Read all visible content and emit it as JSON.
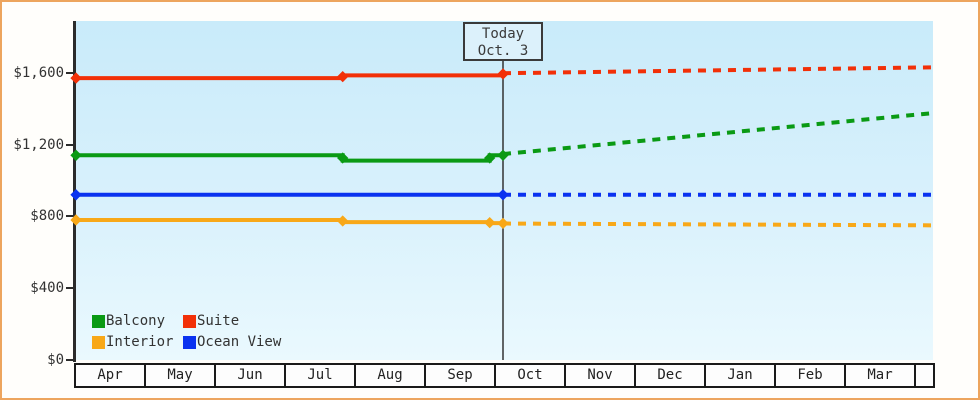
{
  "frame": {
    "border_color": "#eda55e",
    "plot_bg_top": "#c9ebfa",
    "plot_bg_bottom": "#eaf9fe",
    "axis_color": "#2b2b2b"
  },
  "today_box": {
    "line1": "Today",
    "line2": "Oct. 3"
  },
  "legend": {
    "position": "bottom-left-inside",
    "items": [
      {
        "label": "Balcony",
        "color": "#0a9a14"
      },
      {
        "label": "Suite",
        "color": "#f23008"
      },
      {
        "label": "Interior",
        "color": "#f8a818"
      },
      {
        "label": "Ocean View",
        "color": "#0a32f0"
      }
    ]
  },
  "chart_data": {
    "type": "line",
    "x_categories": [
      "Apr",
      "May",
      "Jun",
      "Jul",
      "Aug",
      "Sep",
      "Oct",
      "Nov",
      "Dec",
      "Jan",
      "Feb",
      "Mar",
      ""
    ],
    "x_unit": "month_index_from_Apr",
    "ylim": [
      0,
      1890
    ],
    "y_ticks": [
      {
        "label": "$0",
        "value": 0
      },
      {
        "label": "$400",
        "value": 400
      },
      {
        "label": "$800",
        "value": 800
      },
      {
        "label": "$1,200",
        "value": 1200
      },
      {
        "label": "$1,600",
        "value": 1600
      }
    ],
    "grid": false,
    "today": {
      "month_index": 6.1,
      "label": "Today",
      "date": "Oct. 3"
    },
    "series": [
      {
        "name": "Suite",
        "color": "#f23008",
        "history": [
          [
            0,
            1570
          ],
          [
            3.81,
            1570
          ],
          [
            3.81,
            1585
          ],
          [
            6.1,
            1585
          ]
        ],
        "forecast": [
          [
            6.1,
            1597
          ],
          [
            12.24,
            1630
          ]
        ],
        "markers": [
          [
            0,
            1570
          ],
          [
            3.81,
            1578
          ],
          [
            6.1,
            1593
          ]
        ]
      },
      {
        "name": "Balcony",
        "color": "#0a9a14",
        "history": [
          [
            0,
            1140
          ],
          [
            3.81,
            1140
          ],
          [
            3.81,
            1110
          ],
          [
            5.91,
            1110
          ],
          [
            5.91,
            1140
          ],
          [
            6.1,
            1140
          ]
        ],
        "forecast": [
          [
            6.1,
            1147
          ],
          [
            12.24,
            1375
          ]
        ],
        "markers": [
          [
            0,
            1140
          ],
          [
            3.81,
            1125
          ],
          [
            5.91,
            1125
          ],
          [
            6.1,
            1140
          ]
        ]
      },
      {
        "name": "Ocean View",
        "color": "#0a32f0",
        "history": [
          [
            0,
            920
          ],
          [
            6.1,
            920
          ]
        ],
        "forecast": [
          [
            6.1,
            920
          ],
          [
            12.24,
            920
          ]
        ],
        "markers": [
          [
            0,
            920
          ],
          [
            6.1,
            920
          ]
        ]
      },
      {
        "name": "Interior",
        "color": "#f8a818",
        "history": [
          [
            0,
            780
          ],
          [
            3.81,
            780
          ],
          [
            3.81,
            768
          ],
          [
            5.91,
            768
          ],
          [
            5.91,
            762
          ],
          [
            6.1,
            762
          ]
        ],
        "forecast": [
          [
            6.1,
            760
          ],
          [
            12.24,
            750
          ]
        ],
        "markers": [
          [
            0,
            780
          ],
          [
            3.81,
            774
          ],
          [
            5.91,
            765
          ],
          [
            6.1,
            761
          ]
        ]
      }
    ]
  }
}
